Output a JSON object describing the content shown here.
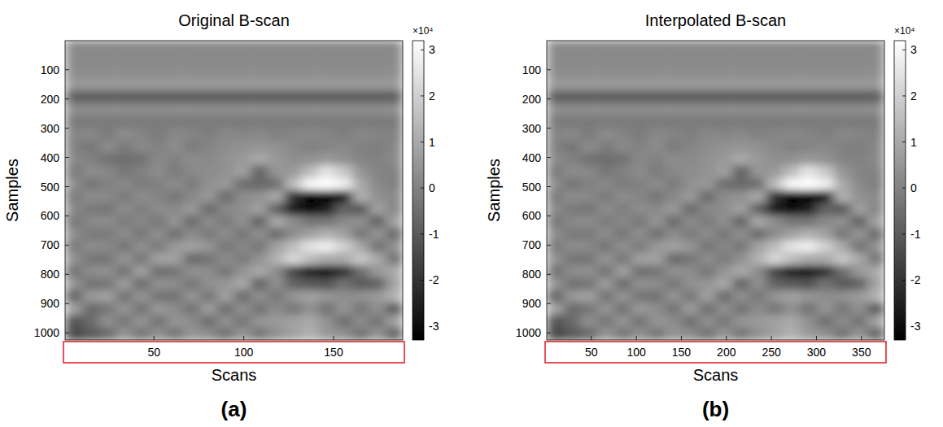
{
  "chart_data": [
    {
      "type": "heatmap",
      "title": "Original B-scan",
      "panel_label": "(a)",
      "x_label": "Scans",
      "y_label": "Samples",
      "xlim": [
        0.5,
        188.5
      ],
      "ylim": [
        0.5,
        1024.5
      ],
      "xticks": [
        50,
        100,
        150
      ],
      "yticks": [
        100,
        200,
        300,
        400,
        500,
        600,
        700,
        800,
        900,
        1000
      ],
      "colorbar": {
        "range": [
          -3.3,
          3.2
        ],
        "ticks": [
          -3,
          -2,
          -1,
          0,
          1,
          2,
          3
        ],
        "multiplier": "×10⁴"
      },
      "cells": [
        [
          0.2,
          0.2,
          0.2,
          0.2,
          0.2,
          0.2,
          0.2,
          0.2,
          0.2,
          0.2,
          0.2,
          0.2,
          0.2,
          0.2,
          0.2,
          0.2,
          0.2,
          0.2,
          0.2,
          0.2
        ],
        [
          0.2,
          0.2,
          0.2,
          0.2,
          0.2,
          0.2,
          0.2,
          0.2,
          0.2,
          0.2,
          0.2,
          0.2,
          0.2,
          0.2,
          0.2,
          0.2,
          0.2,
          0.2,
          0.2,
          0.2
        ],
        [
          0.3,
          0.3,
          0.3,
          0.3,
          0.3,
          0.3,
          0.3,
          0.3,
          0.3,
          0.3,
          0.3,
          0.3,
          0.3,
          0.3,
          0.3,
          0.3,
          0.3,
          0.3,
          0.3,
          0.3
        ],
        [
          0.6,
          0.6,
          0.6,
          0.6,
          0.6,
          0.6,
          0.6,
          0.6,
          0.6,
          0.6,
          0.6,
          0.6,
          0.6,
          0.6,
          0.6,
          0.6,
          0.6,
          0.6,
          0.6,
          0.6
        ],
        [
          -0.9,
          -0.9,
          -0.9,
          -0.9,
          -0.9,
          -0.9,
          -0.9,
          -0.9,
          -0.9,
          -0.9,
          -0.9,
          -0.9,
          -0.9,
          -0.9,
          -0.9,
          -0.9,
          -0.9,
          -0.9,
          -0.9,
          -0.9
        ],
        [
          0.3,
          0.3,
          0.3,
          0.3,
          0.3,
          0.3,
          0.3,
          0.3,
          0.3,
          0.3,
          0.3,
          0.3,
          0.3,
          0.3,
          0.3,
          0.3,
          0.3,
          0.3,
          0.3,
          0.3
        ],
        [
          -0.2,
          -0.2,
          -0.2,
          -0.2,
          -0.2,
          -0.2,
          -0.2,
          -0.2,
          -0.2,
          -0.2,
          -0.2,
          -0.2,
          -0.2,
          -0.2,
          -0.2,
          -0.2,
          -0.2,
          -0.2,
          -0.2,
          -0.2
        ],
        [
          0.1,
          0.2,
          -0.2,
          0.3,
          0.1,
          -0.2,
          0.2,
          0.1,
          -0.1,
          0.2,
          0.1,
          0.2,
          0.0,
          0.1,
          0.2,
          0.1,
          -0.1,
          0.2,
          0.1,
          0.0
        ],
        [
          0.0,
          -0.3,
          0.3,
          -0.2,
          0.2,
          0.0,
          0.3,
          -0.2,
          0.1,
          0.3,
          0.4,
          0.5,
          0.4,
          0.2,
          0.0,
          0.1,
          0.2,
          0.0,
          -0.1,
          0.1
        ],
        [
          0.2,
          0.0,
          -0.4,
          -0.5,
          -0.4,
          0.2,
          0.0,
          0.3,
          0.2,
          0.4,
          0.6,
          1.0,
          0.6,
          0.3,
          0.4,
          0.6,
          0.4,
          0.1,
          0.0,
          0.2
        ],
        [
          -0.2,
          0.3,
          0.2,
          -0.3,
          0.0,
          0.3,
          -0.2,
          0.2,
          0.3,
          0.4,
          0.8,
          -0.8,
          0.5,
          0.6,
          1.5,
          2.5,
          1.8,
          0.5,
          0.1,
          0.0
        ],
        [
          0.3,
          -0.3,
          0.0,
          0.2,
          -0.2,
          0.0,
          0.3,
          -0.2,
          0.4,
          0.6,
          -0.5,
          -0.6,
          -0.5,
          1.5,
          3.0,
          3.2,
          2.8,
          1.0,
          0.2,
          -0.1
        ],
        [
          -0.2,
          0.3,
          0.2,
          -0.2,
          0.3,
          0.1,
          -0.3,
          0.2,
          0.6,
          -0.6,
          0.3,
          0.4,
          1.0,
          -2.0,
          -3.2,
          -3.2,
          -2.8,
          1.2,
          0.4,
          0.2
        ],
        [
          0.2,
          -0.2,
          -0.3,
          0.3,
          -0.1,
          0.3,
          0.2,
          0.6,
          -0.6,
          0.2,
          0.3,
          0.8,
          -0.8,
          -2.5,
          -3.0,
          -2.5,
          -0.8,
          -1.0,
          0.8,
          0.1
        ],
        [
          -0.3,
          0.2,
          0.3,
          -0.2,
          0.2,
          -0.3,
          0.5,
          -0.6,
          0.3,
          -0.2,
          0.4,
          -0.8,
          1.0,
          0.3,
          -0.3,
          -0.3,
          0.2,
          0.4,
          -0.8,
          0.8
        ],
        [
          0.3,
          -0.2,
          -0.2,
          0.3,
          -0.3,
          0.4,
          -0.5,
          0.3,
          -0.2,
          0.3,
          -0.3,
          0.4,
          -0.6,
          0.3,
          0.8,
          1.2,
          0.8,
          -0.3,
          0.5,
          -0.6
        ],
        [
          -0.2,
          0.3,
          0.2,
          -0.3,
          0.4,
          -0.2,
          0.6,
          0.8,
          0.5,
          -0.3,
          0.2,
          -0.3,
          0.8,
          1.5,
          2.5,
          2.8,
          2.0,
          1.0,
          -0.4,
          0.4
        ],
        [
          0.4,
          -0.3,
          -0.3,
          0.5,
          -0.3,
          0.8,
          0.8,
          -0.6,
          -0.3,
          0.3,
          -0.2,
          0.4,
          1.2,
          2.2,
          1.5,
          1.0,
          1.0,
          1.8,
          1.0,
          -0.4
        ],
        [
          -0.4,
          0.3,
          0.4,
          -0.4,
          0.8,
          -0.5,
          -0.3,
          0.4,
          0.3,
          -0.3,
          0.5,
          1.0,
          0.3,
          -1.5,
          -2.5,
          -2.8,
          -2.0,
          -0.5,
          0.6,
          1.0
        ],
        [
          0.5,
          -0.4,
          -0.3,
          0.7,
          -0.6,
          0.4,
          0.3,
          -0.3,
          0.4,
          0.5,
          1.0,
          -0.8,
          0.4,
          -0.8,
          -1.0,
          -1.2,
          -0.4,
          -1.0,
          -0.8,
          0.8
        ],
        [
          -0.8,
          0.6,
          0.8,
          -0.4,
          0.5,
          -0.3,
          -0.4,
          0.5,
          -0.3,
          0.8,
          -0.6,
          0.4,
          -0.3,
          0.5,
          0.8,
          0.5,
          0.3,
          0.4,
          0.6,
          1.2
        ],
        [
          0.8,
          -0.6,
          -0.3,
          0.5,
          -0.4,
          0.6,
          0.3,
          -0.4,
          0.7,
          -0.5,
          0.4,
          -0.4,
          0.3,
          -0.3,
          0.4,
          -0.4,
          0.5,
          -0.3,
          0.4,
          -1.0
        ],
        [
          -1.2,
          -0.6,
          0.4,
          -0.3,
          0.5,
          -0.4,
          0.5,
          0.3,
          -0.5,
          0.4,
          -0.3,
          0.5,
          0.6,
          0.8,
          1.0,
          0.4,
          -0.5,
          0.3,
          -0.4,
          0.8
        ],
        [
          -1.5,
          -1.0,
          -0.6,
          0.5,
          -0.3,
          0.4,
          -0.3,
          0.5,
          0.3,
          -0.4,
          0.5,
          -0.3,
          0.4,
          0.8,
          1.2,
          0.6,
          0.4,
          -0.4,
          0.5,
          -0.8
        ]
      ]
    },
    {
      "type": "heatmap",
      "title": "Interpolated B-scan",
      "panel_label": "(b)",
      "x_label": "Scans",
      "y_label": "Samples",
      "xlim": [
        0.5,
        375.5
      ],
      "ylim": [
        0.5,
        1024.5
      ],
      "xticks": [
        50,
        100,
        150,
        200,
        250,
        300,
        350
      ],
      "yticks": [
        100,
        200,
        300,
        400,
        500,
        600,
        700,
        800,
        900,
        1000
      ],
      "colorbar": {
        "range": [
          -3.3,
          3.2
        ],
        "ticks": [
          -3,
          -2,
          -1,
          0,
          1,
          2,
          3
        ],
        "multiplier": "×10⁴"
      },
      "cells": [
        [
          0.2,
          0.2,
          0.2,
          0.2,
          0.2,
          0.2,
          0.2,
          0.2,
          0.2,
          0.2,
          0.2,
          0.2,
          0.2,
          0.2,
          0.2,
          0.2,
          0.2,
          0.2,
          0.2,
          0.2
        ],
        [
          0.2,
          0.2,
          0.2,
          0.2,
          0.2,
          0.2,
          0.2,
          0.2,
          0.2,
          0.2,
          0.2,
          0.2,
          0.2,
          0.2,
          0.2,
          0.2,
          0.2,
          0.2,
          0.2,
          0.2
        ],
        [
          0.3,
          0.3,
          0.3,
          0.3,
          0.3,
          0.3,
          0.3,
          0.3,
          0.3,
          0.3,
          0.3,
          0.3,
          0.3,
          0.3,
          0.3,
          0.3,
          0.3,
          0.3,
          0.3,
          0.3
        ],
        [
          0.6,
          0.6,
          0.6,
          0.6,
          0.6,
          0.6,
          0.6,
          0.6,
          0.6,
          0.6,
          0.6,
          0.6,
          0.6,
          0.6,
          0.6,
          0.6,
          0.6,
          0.6,
          0.6,
          0.6
        ],
        [
          -0.9,
          -0.9,
          -0.9,
          -0.9,
          -0.9,
          -0.9,
          -0.9,
          -0.9,
          -0.9,
          -0.9,
          -0.9,
          -0.9,
          -0.9,
          -0.9,
          -0.9,
          -0.9,
          -0.9,
          -0.9,
          -0.9,
          -0.9
        ],
        [
          0.3,
          0.3,
          0.3,
          0.3,
          0.3,
          0.3,
          0.3,
          0.3,
          0.3,
          0.3,
          0.3,
          0.3,
          0.3,
          0.3,
          0.3,
          0.3,
          0.3,
          0.3,
          0.3,
          0.3
        ],
        [
          -0.2,
          -0.2,
          -0.2,
          -0.2,
          -0.2,
          -0.2,
          -0.2,
          -0.2,
          -0.2,
          -0.2,
          -0.2,
          -0.2,
          -0.2,
          -0.2,
          -0.2,
          -0.2,
          -0.2,
          -0.2,
          -0.2,
          -0.2
        ],
        [
          0.1,
          0.2,
          -0.2,
          0.3,
          0.1,
          -0.2,
          0.2,
          0.1,
          -0.1,
          0.2,
          0.1,
          0.2,
          0.0,
          0.1,
          0.2,
          0.1,
          -0.1,
          0.2,
          0.1,
          0.0
        ],
        [
          0.0,
          -0.3,
          0.3,
          -0.2,
          0.2,
          0.0,
          0.3,
          -0.2,
          0.1,
          0.3,
          0.4,
          0.5,
          0.4,
          0.2,
          0.0,
          0.1,
          0.2,
          0.0,
          -0.1,
          0.1
        ],
        [
          0.2,
          0.0,
          -0.4,
          -0.5,
          -0.4,
          0.2,
          0.0,
          0.3,
          0.2,
          0.4,
          0.6,
          1.0,
          0.6,
          0.3,
          0.4,
          0.6,
          0.4,
          0.1,
          0.0,
          0.2
        ],
        [
          -0.2,
          0.3,
          0.2,
          -0.3,
          0.0,
          0.3,
          -0.2,
          0.2,
          0.3,
          0.4,
          0.8,
          -0.8,
          0.5,
          0.6,
          1.5,
          2.5,
          1.8,
          0.5,
          0.1,
          0.0
        ],
        [
          0.3,
          -0.3,
          0.0,
          0.2,
          -0.2,
          0.0,
          0.3,
          -0.2,
          0.4,
          0.6,
          -0.5,
          -0.6,
          -0.5,
          1.5,
          3.0,
          3.2,
          2.8,
          1.0,
          0.2,
          -0.1
        ],
        [
          -0.2,
          0.3,
          0.2,
          -0.2,
          0.3,
          0.1,
          -0.3,
          0.2,
          0.6,
          -0.6,
          0.3,
          0.4,
          1.0,
          -2.0,
          -3.2,
          -3.2,
          -2.8,
          1.2,
          0.4,
          0.2
        ],
        [
          0.2,
          -0.2,
          -0.3,
          0.3,
          -0.1,
          0.3,
          0.2,
          0.6,
          -0.6,
          0.2,
          0.3,
          0.8,
          -0.8,
          -2.5,
          -3.0,
          -2.5,
          -0.8,
          -1.0,
          0.8,
          0.1
        ],
        [
          -0.3,
          0.2,
          0.3,
          -0.2,
          0.2,
          -0.3,
          0.5,
          -0.6,
          0.3,
          -0.2,
          0.4,
          -0.8,
          1.0,
          0.3,
          -0.3,
          -0.3,
          0.2,
          0.4,
          -0.8,
          0.8
        ],
        [
          0.3,
          -0.2,
          -0.2,
          0.3,
          -0.3,
          0.4,
          -0.5,
          0.3,
          -0.2,
          0.3,
          -0.3,
          0.4,
          -0.6,
          0.3,
          0.8,
          1.2,
          0.8,
          -0.3,
          0.5,
          -0.6
        ],
        [
          -0.2,
          0.3,
          0.2,
          -0.3,
          0.4,
          -0.2,
          0.6,
          0.8,
          0.5,
          -0.3,
          0.2,
          -0.3,
          0.8,
          1.5,
          2.5,
          2.8,
          2.0,
          1.0,
          -0.4,
          0.4
        ],
        [
          0.4,
          -0.3,
          -0.3,
          0.5,
          -0.3,
          0.8,
          0.8,
          -0.6,
          -0.3,
          0.3,
          -0.2,
          0.4,
          1.2,
          2.2,
          1.5,
          1.0,
          1.0,
          1.8,
          1.0,
          -0.4
        ],
        [
          -0.4,
          0.3,
          0.4,
          -0.4,
          0.8,
          -0.5,
          -0.3,
          0.4,
          0.3,
          -0.3,
          0.5,
          1.0,
          0.3,
          -1.5,
          -2.5,
          -2.8,
          -2.0,
          -0.5,
          0.6,
          1.0
        ],
        [
          0.5,
          -0.4,
          -0.3,
          0.7,
          -0.6,
          0.4,
          0.3,
          -0.3,
          0.4,
          0.5,
          1.0,
          -0.8,
          0.4,
          -0.8,
          -1.0,
          -1.2,
          -0.4,
          -1.0,
          -0.8,
          0.8
        ],
        [
          -0.8,
          0.6,
          0.8,
          -0.4,
          0.5,
          -0.3,
          -0.4,
          0.5,
          -0.3,
          0.8,
          -0.6,
          0.4,
          -0.3,
          0.5,
          0.8,
          0.5,
          0.3,
          0.4,
          0.6,
          1.2
        ],
        [
          0.8,
          -0.6,
          -0.3,
          0.5,
          -0.4,
          0.6,
          0.3,
          -0.4,
          0.7,
          -0.5,
          0.4,
          -0.4,
          0.3,
          -0.3,
          0.4,
          -0.4,
          0.5,
          -0.3,
          0.4,
          -1.0
        ],
        [
          -1.2,
          -0.6,
          0.4,
          -0.3,
          0.5,
          -0.4,
          0.5,
          0.3,
          -0.5,
          0.4,
          -0.3,
          0.5,
          0.6,
          0.8,
          1.0,
          0.4,
          -0.5,
          0.3,
          -0.4,
          0.8
        ],
        [
          -1.5,
          -1.0,
          -0.6,
          0.5,
          -0.3,
          0.4,
          -0.3,
          0.5,
          0.3,
          -0.4,
          0.5,
          -0.3,
          0.4,
          0.8,
          1.2,
          0.6,
          0.4,
          -0.4,
          0.5,
          -0.8
        ]
      ]
    }
  ]
}
